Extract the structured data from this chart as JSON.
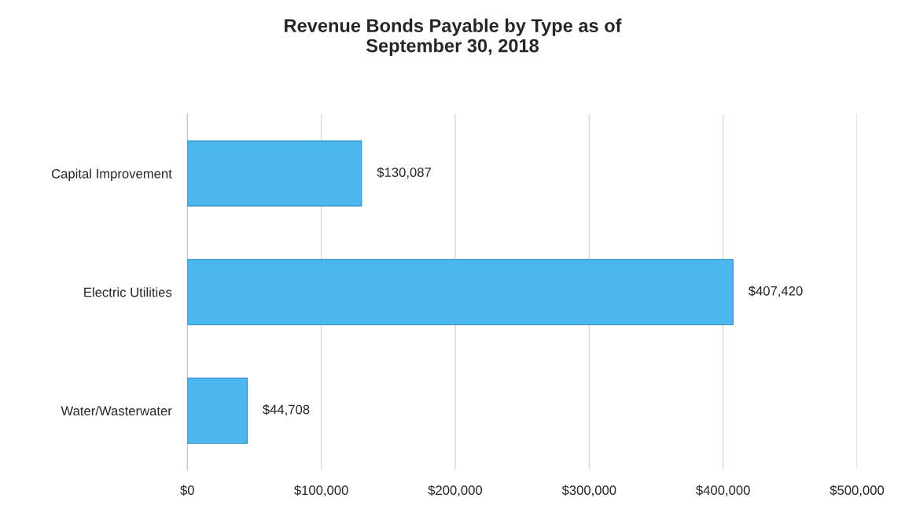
{
  "chart_data": {
    "type": "bar",
    "orientation": "horizontal",
    "title": "Revenue Bonds Payable by Type as of\nSeptember 30, 2018",
    "categories": [
      "Capital Improvement",
      "Electric Utilities",
      "Water/Wasterwater"
    ],
    "values": [
      130087,
      407420,
      44708
    ],
    "value_labels": [
      "$130,087",
      "$407,420",
      "$44,708"
    ],
    "color": "#4cb6ee",
    "xlim": [
      0,
      500000
    ],
    "xticks": [
      {
        "value": 0,
        "label": "$0"
      },
      {
        "value": 100000,
        "label": "$100,000"
      },
      {
        "value": 200000,
        "label": "$200,000"
      },
      {
        "value": 300000,
        "label": "$300,000"
      },
      {
        "value": 400000,
        "label": "$400,000"
      },
      {
        "value": 500000,
        "label": "$500,000"
      }
    ],
    "grid": "x",
    "legend": false
  }
}
